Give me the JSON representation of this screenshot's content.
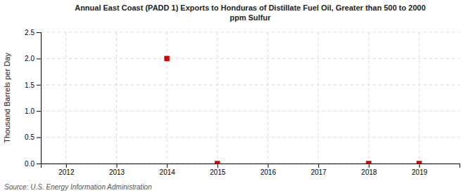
{
  "chart_data": {
    "type": "scatter",
    "title": "Annual East Coast (PADD 1) Exports to Honduras of Distillate Fuel Oil, Greater than 500 to 2000\nppm Sulfur",
    "y_label": "Thousand Barrels per Day",
    "annotations": [
      "Source: U.S. Energy Information Administration"
    ],
    "x": [
      2014,
      2015,
      2018,
      2019
    ],
    "values": [
      2.0,
      0.0,
      0.0,
      0.0
    ],
    "color": "#cc0000",
    "marker": "square",
    "xlim": [
      2011.5,
      2019.8
    ],
    "xticks": [
      2012,
      2013,
      2014,
      2015,
      2016,
      2017,
      2018,
      2019
    ],
    "ylim": [
      0,
      2.5
    ],
    "yticks": [
      {
        "value": 0,
        "label": "0.0"
      },
      0.5,
      {
        "value": 1,
        "label": "1.0"
      },
      1.5,
      {
        "value": 2,
        "label": "2.0"
      },
      2.5
    ],
    "grid": true
  }
}
